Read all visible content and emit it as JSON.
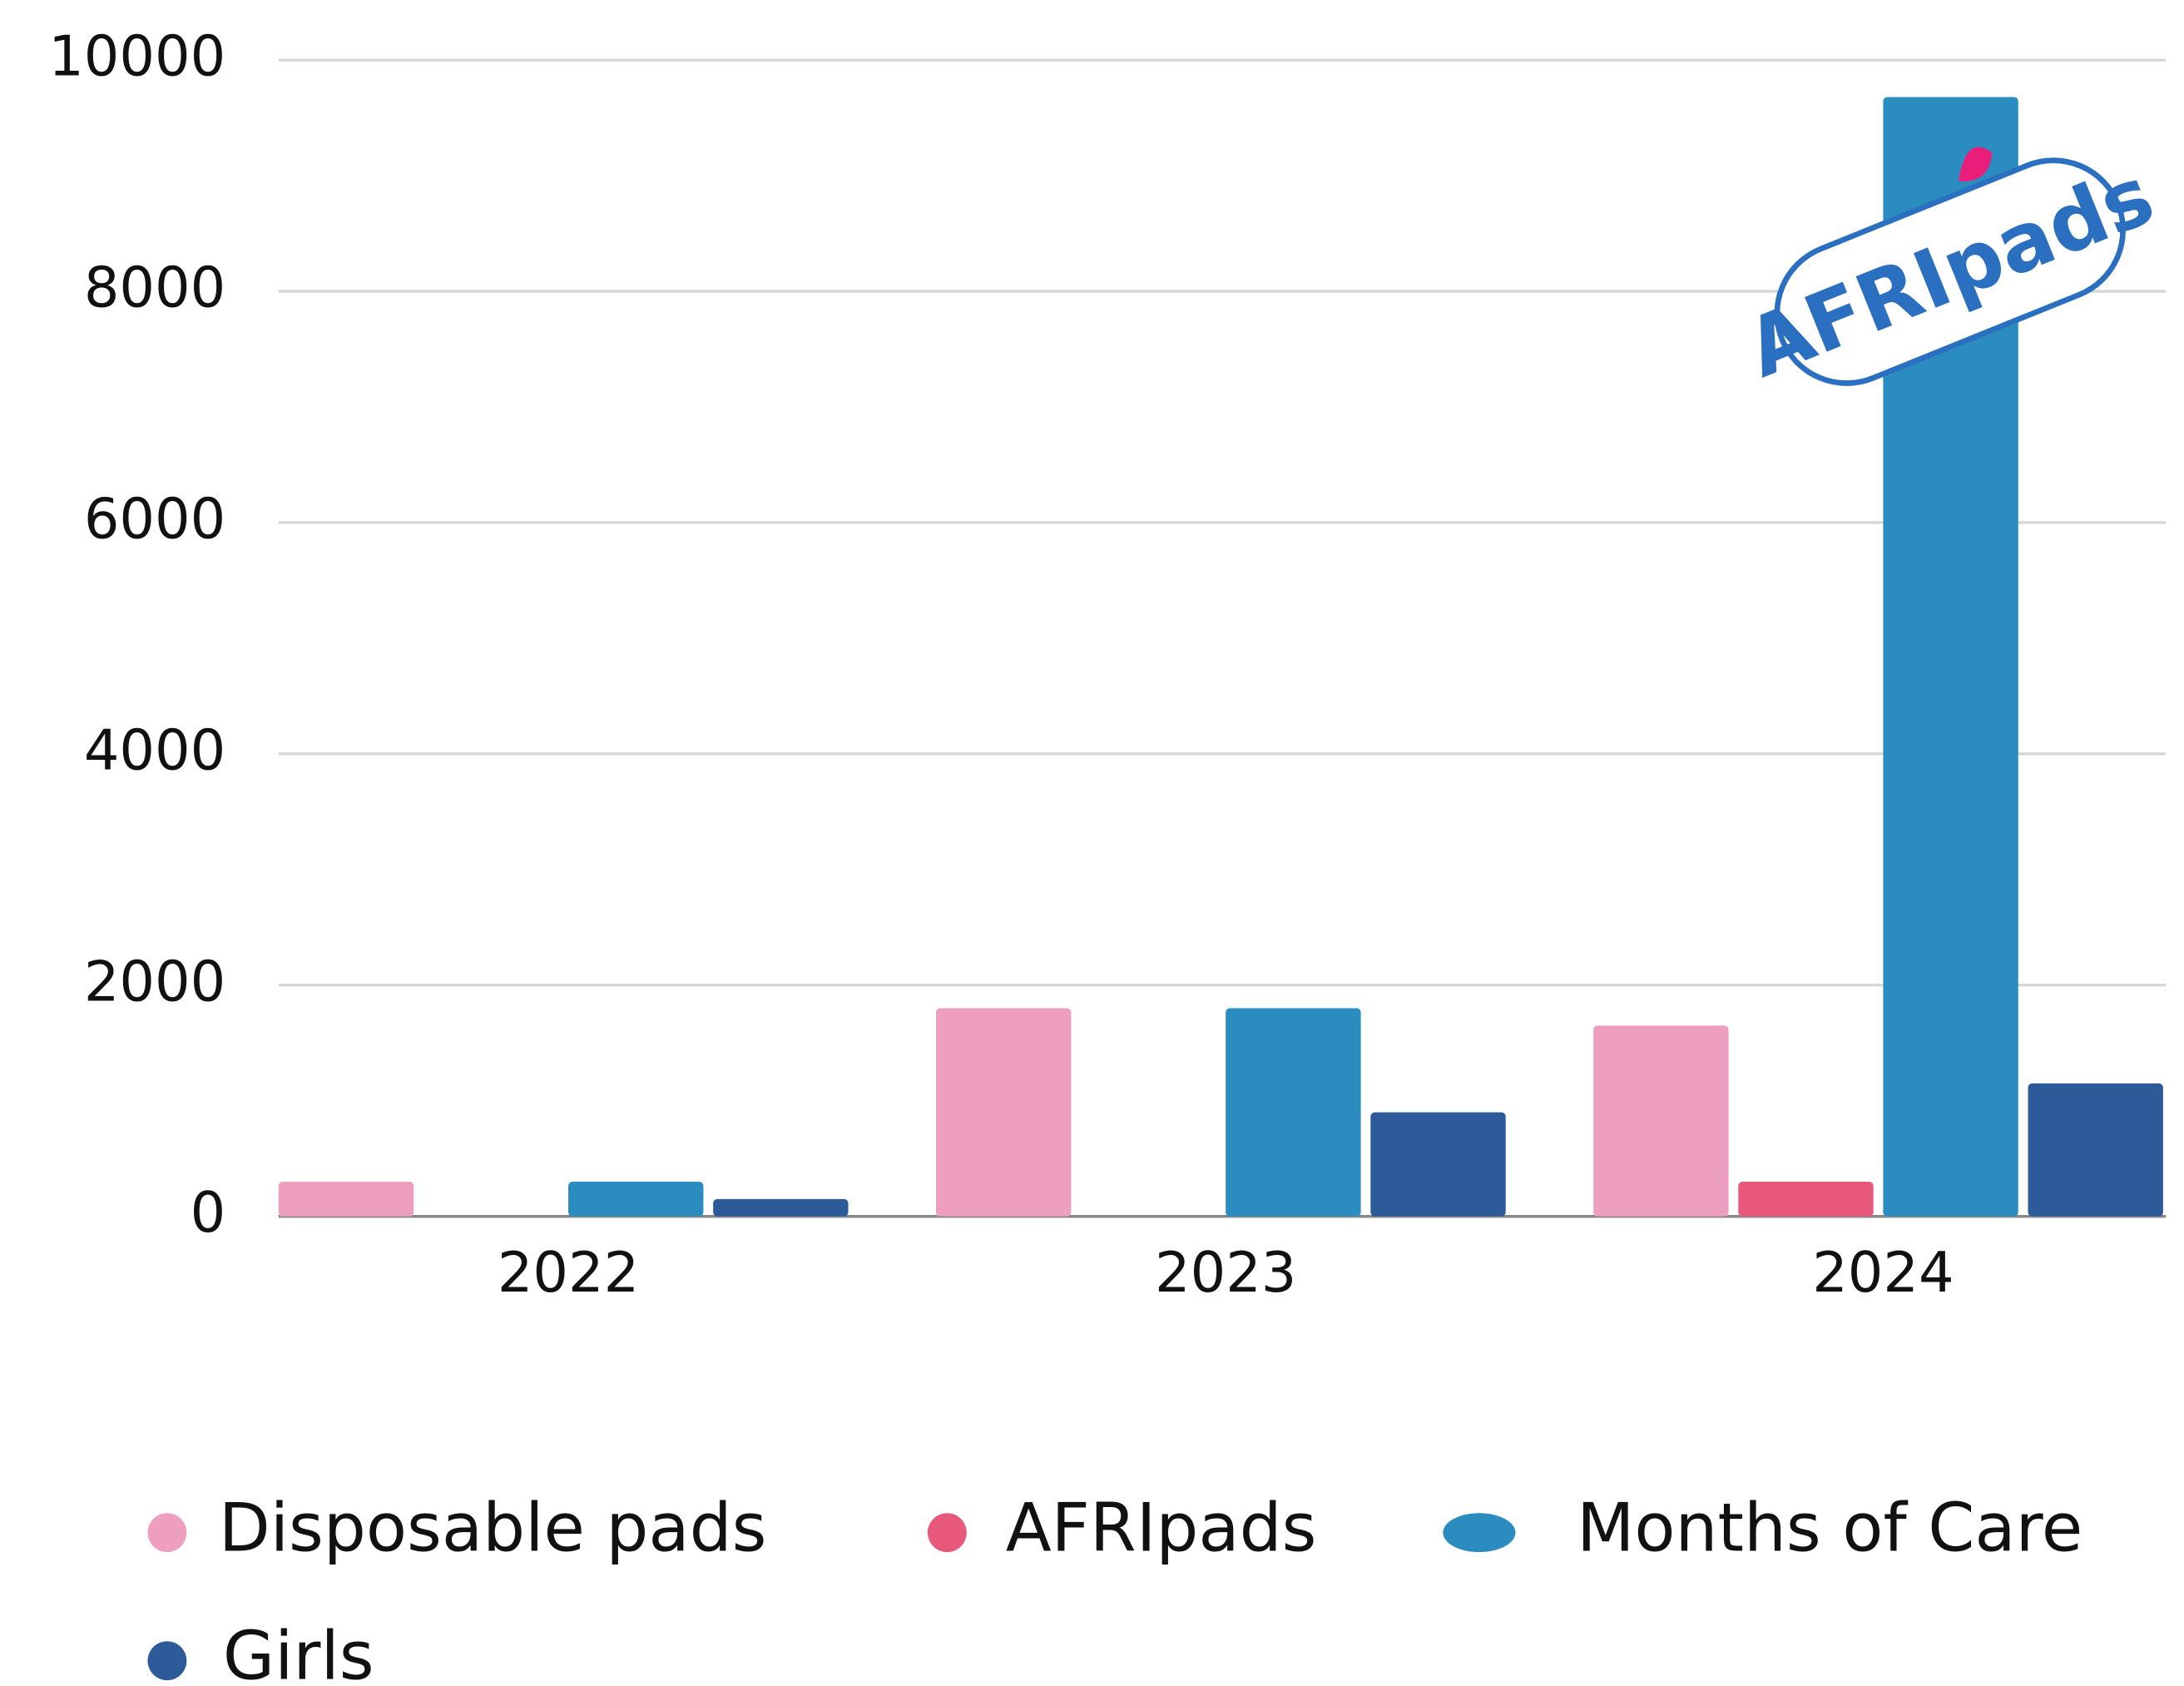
{
  "chart_data": {
    "type": "bar",
    "categories": [
      "2022",
      "2023",
      "2024"
    ],
    "series": [
      {
        "name": "Disposable pads",
        "color": "#ee9fbf",
        "values": [
          300,
          1800,
          1650
        ]
      },
      {
        "name": "AFRIpads",
        "color": "#e8587a",
        "values": [
          0,
          0,
          300
        ]
      },
      {
        "name": "Months of Care",
        "color": "#2b8cc0",
        "values": [
          300,
          1800,
          9680
        ]
      },
      {
        "name": "Girls",
        "color": "#2d5b9a",
        "values": [
          150,
          900,
          1150
        ]
      }
    ],
    "ylim": [
      0,
      10000
    ],
    "yticks": [
      0,
      2000,
      4000,
      6000,
      8000,
      10000
    ],
    "grid": true,
    "legend": "bottom",
    "logo": "AFRIpads"
  }
}
